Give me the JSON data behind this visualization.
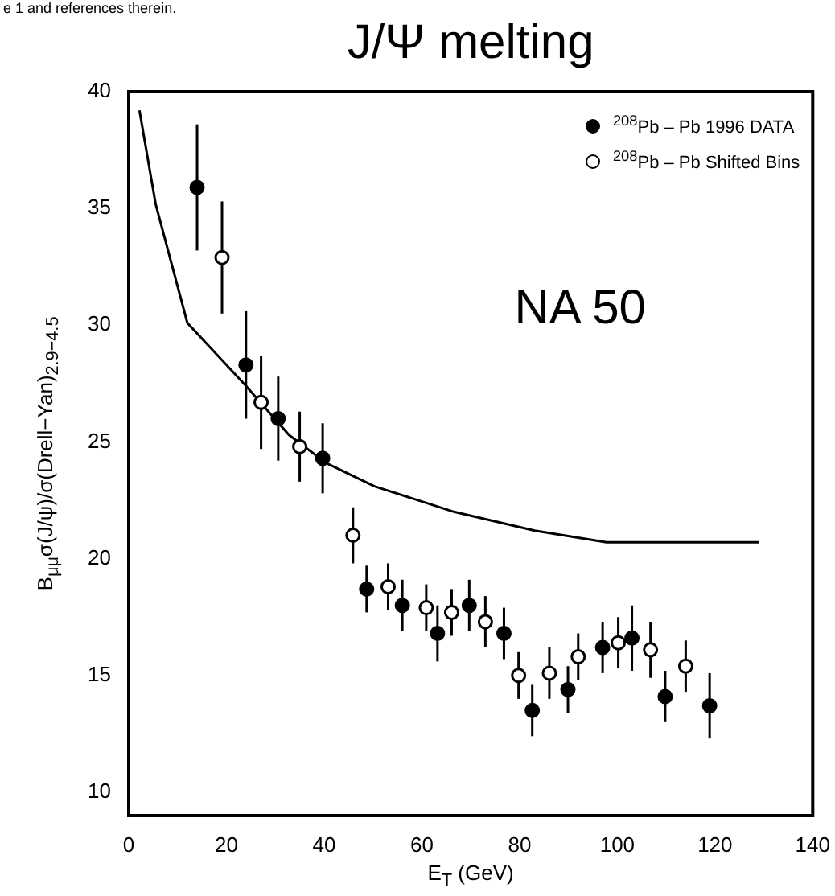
{
  "chart_data": {
    "type": "scatter",
    "title": "J/Ψ  melting",
    "xlabel": "E$_{T}$ (GeV)",
    "ylabel": "B$_{μμ}$σ(J/ψ)/σ(Drell−Yan)$_{2.9−4.5}$",
    "annotations": [
      "e 1 and references therein.",
      "NA 50"
    ],
    "xlim": [
      0,
      140
    ],
    "xticks": [
      0,
      20,
      40,
      60,
      80,
      100,
      120,
      140
    ],
    "ylim": [
      9,
      40
    ],
    "yticks": [
      10,
      15,
      20,
      25,
      30,
      35,
      40
    ],
    "grid": false,
    "legend": "top right",
    "series": [
      {
        "name": "$^{208}$Pb – Pb 1996 DATA",
        "color": "#000000",
        "marker": "circle",
        "x": [
          14.0,
          24.0,
          30.6,
          39.7,
          48.7,
          56.0,
          63.2,
          69.7,
          76.8,
          82.6,
          89.9,
          97.0,
          103.0,
          109.8,
          118.9
        ],
        "values": [
          35.9,
          28.3,
          26.0,
          24.3,
          18.7,
          18.0,
          16.8,
          18.0,
          16.8,
          13.5,
          14.4,
          16.2,
          16.6,
          14.1,
          13.7
        ],
        "errors": [
          2.7,
          2.3,
          1.8,
          1.5,
          1.0,
          1.1,
          1.2,
          1.1,
          1.1,
          1.1,
          1.0,
          1.1,
          1.4,
          1.1,
          1.4
        ]
      },
      {
        "name": "$^{208}$Pb – Pb Shifted Bins",
        "color": "#000000",
        "marker": "circle",
        "x": [
          19.1,
          27.1,
          35.0,
          45.9,
          53.1,
          60.9,
          66.1,
          73.0,
          79.8,
          86.1,
          92.0,
          100.2,
          106.8,
          114.0
        ],
        "values": [
          32.9,
          26.7,
          24.8,
          21.0,
          18.8,
          17.9,
          17.7,
          17.3,
          15.0,
          15.1,
          15.8,
          16.4,
          16.1,
          15.4
        ],
        "errors": [
          2.4,
          2.0,
          1.5,
          1.2,
          1.0,
          1.0,
          1.0,
          1.1,
          1.0,
          1.1,
          1.0,
          1.1,
          1.2,
          1.1
        ]
      },
      {
        "type": "line",
        "color": "#000000",
        "marker": "none",
        "x": [
          2.2,
          5.5,
          12.0,
          24.0,
          32.8,
          40.4,
          50.3,
          66.7,
          83.1,
          97.8,
          129.0
        ],
        "values": [
          39.2,
          35.2,
          30.1,
          27.4,
          25.3,
          24.1,
          23.1,
          22.0,
          21.2,
          20.7,
          20.7
        ]
      }
    ]
  }
}
